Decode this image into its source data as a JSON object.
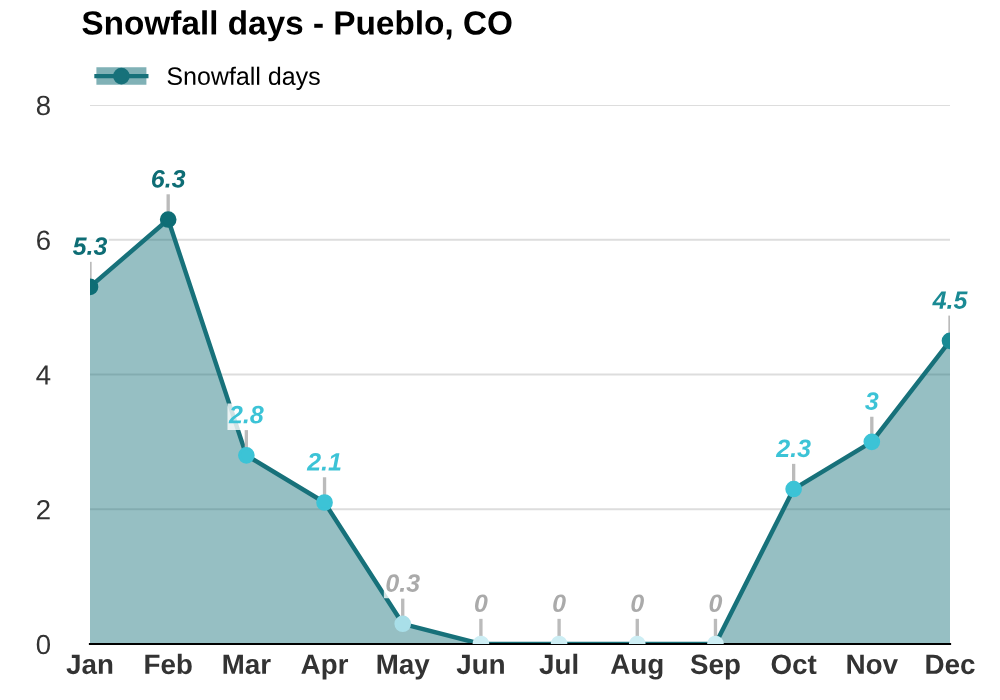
{
  "chart_data": {
    "type": "area",
    "title": "Snowfall days - Pueblo, CO",
    "categories": [
      "Jan",
      "Feb",
      "Mar",
      "Apr",
      "May",
      "Jun",
      "Jul",
      "Aug",
      "Sep",
      "Oct",
      "Nov",
      "Dec"
    ],
    "series": [
      {
        "name": "Snowfall days",
        "color": "#17717a",
        "colors": [
          "#0e6d75",
          "#0e6d75",
          "#3cc3d6",
          "#3cc3d6",
          "#a9dfe9",
          "#cdeef4",
          "#cdeef4",
          "#cdeef4",
          "#cdeef4",
          "#3cc3d6",
          "#3cc3d6",
          "#1a8a94"
        ],
        "values": [
          5.3,
          6.3,
          2.8,
          2.1,
          0.3,
          0,
          0,
          0,
          0,
          2.3,
          3,
          4.5
        ]
      }
    ],
    "ylim": [
      0,
      8
    ],
    "yticks": [
      0,
      2,
      4,
      6,
      8
    ],
    "grid": "y",
    "legend": "top left",
    "marker": "circle",
    "data_labels": true
  }
}
